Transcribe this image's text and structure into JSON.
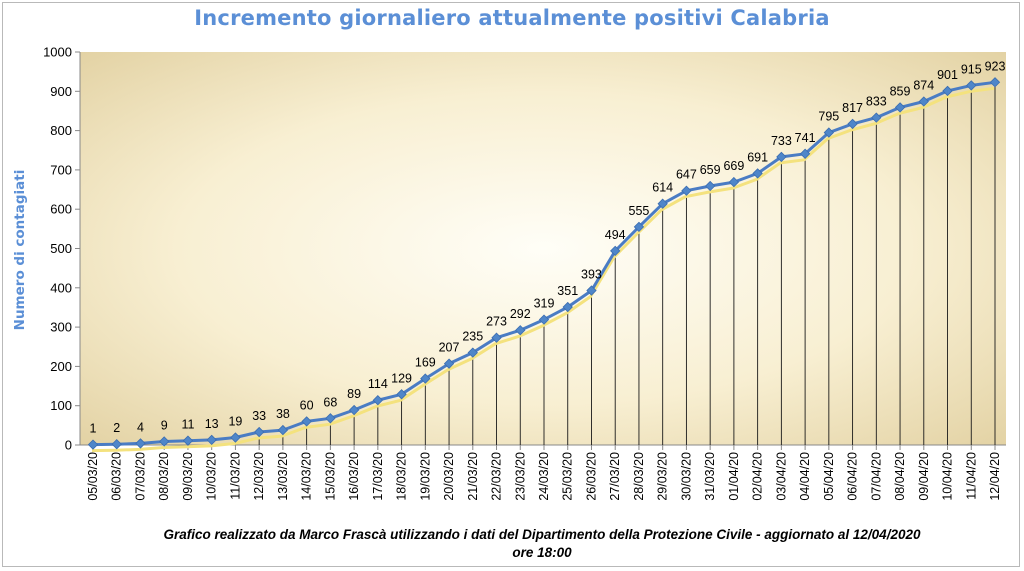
{
  "chart_data": {
    "type": "line",
    "title": "Incremento giornaliero attualmente positivi Calabria",
    "xlabel": "",
    "ylabel": "Numero di contagiati",
    "ylim": [
      0,
      1000
    ],
    "yticks": [
      0,
      100,
      200,
      300,
      400,
      500,
      600,
      700,
      800,
      900,
      1000
    ],
    "categories": [
      "05/03/20",
      "06/03/20",
      "07/03/20",
      "08/03/20",
      "09/03/20",
      "10/03/20",
      "11/03/20",
      "12/03/20",
      "13/03/20",
      "14/03/20",
      "15/03/20",
      "16/03/20",
      "17/03/20",
      "18/03/20",
      "19/03/20",
      "20/03/20",
      "21/03/20",
      "22/03/20",
      "23/03/20",
      "24/03/20",
      "25/03/20",
      "26/03/20",
      "27/03/20",
      "28/03/20",
      "29/03/20",
      "30/03/20",
      "31/03/20",
      "01/04/20",
      "02/04/20",
      "03/04/20",
      "04/04/20",
      "05/04/20",
      "06/04/20",
      "07/04/20",
      "08/04/20",
      "09/04/20",
      "10/04/20",
      "11/04/20",
      "12/04/20"
    ],
    "values": [
      1,
      2,
      4,
      9,
      11,
      13,
      19,
      33,
      38,
      60,
      68,
      89,
      114,
      129,
      169,
      207,
      235,
      273,
      292,
      319,
      351,
      393,
      494,
      555,
      614,
      647,
      659,
      669,
      691,
      733,
      741,
      795,
      817,
      833,
      859,
      874,
      901,
      915,
      923
    ],
    "grid": false,
    "drop_lines": true,
    "legend": "none"
  },
  "footer": {
    "line1": "Grafico  realizzato da Marco Frascà  utilizzando i dati del Dipartimento  della Protezione Civile - aggiornato al 12/04/2020",
    "line2": "ore 18:00"
  },
  "colors": {
    "title": "#5b8fd6",
    "line": "#4a7cc4",
    "marker": "#4f86c9",
    "shadow": "#f4e27e",
    "plot_bg_light": "#fffdf2",
    "plot_bg_dark": "#e2d3a5"
  }
}
